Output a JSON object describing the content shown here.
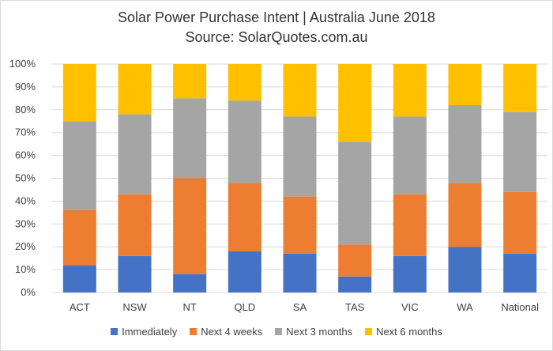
{
  "chart_data": {
    "type": "bar",
    "stacked": true,
    "title": "Solar Power Purchase Intent | Australia June 2018",
    "subtitle": "Source: SolarQuotes.com.au",
    "categories": [
      "ACT",
      "NSW",
      "NT",
      "QLD",
      "SA",
      "TAS",
      "VIC",
      "WA",
      "National"
    ],
    "series": [
      {
        "name": "Immediately",
        "color": "#4472C4",
        "values": [
          12,
          16,
          8,
          18,
          17,
          7,
          16,
          20,
          17
        ]
      },
      {
        "name": "Next 4 weeks",
        "color": "#ED7D31",
        "values": [
          24,
          27,
          42,
          30,
          25,
          14,
          27,
          28,
          27
        ]
      },
      {
        "name": "Next 3 months",
        "color": "#A5A5A5",
        "values": [
          39,
          35,
          35,
          36,
          35,
          45,
          34,
          34,
          35
        ]
      },
      {
        "name": "Next 6 months",
        "color": "#FFC000",
        "values": [
          25,
          22,
          15,
          16,
          23,
          34,
          23,
          18,
          21
        ]
      }
    ],
    "yticks": [
      "0%",
      "10%",
      "20%",
      "30%",
      "40%",
      "50%",
      "60%",
      "70%",
      "80%",
      "90%",
      "100%"
    ],
    "ylim": [
      0,
      100
    ],
    "grid": true,
    "legend": "bottom"
  }
}
